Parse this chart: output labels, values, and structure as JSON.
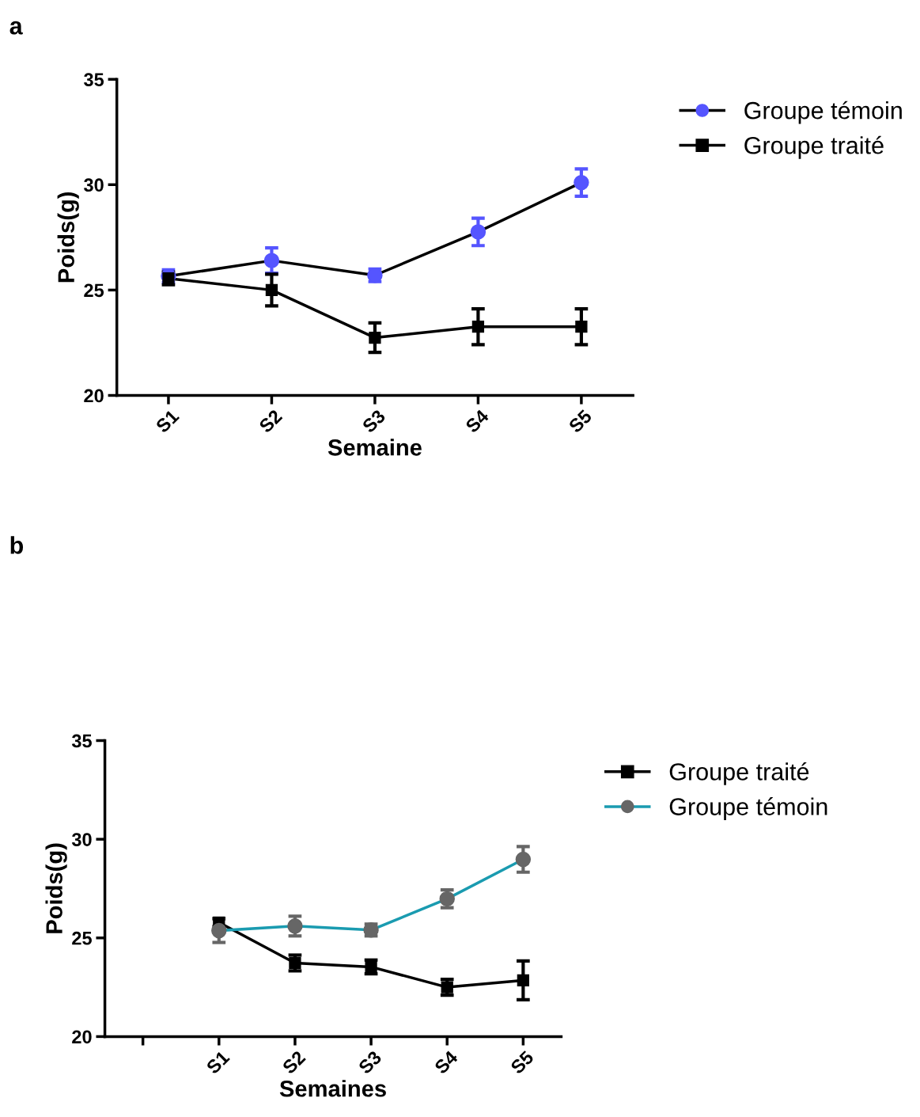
{
  "chart_data": [
    {
      "type": "line",
      "annotations": [
        "a"
      ],
      "xlabel": "Semaine",
      "ylabel": "Poids(g)",
      "categories": [
        "S1",
        "S2",
        "S3",
        "S4",
        "S5"
      ],
      "ylim": [
        20,
        35
      ],
      "yticks": [
        20,
        25,
        30,
        35
      ],
      "grid": false,
      "legend": "top right",
      "series": [
        {
          "name": "Groupe témoin",
          "color": "#000000",
          "colors": [
            "#5555ff",
            "#5555ff",
            "#5555ff",
            "#5555ff",
            "#5555ff"
          ],
          "marker": "circle",
          "values": [
            25.66,
            26.4,
            25.7,
            27.76,
            30.1
          ],
          "errors": [
            0.3,
            0.6,
            0.3,
            0.65,
            0.65
          ]
        },
        {
          "name": "Groupe traité",
          "color": "#000000",
          "colors": [
            "#000000",
            "#000000",
            "#000000",
            "#000000",
            "#000000"
          ],
          "marker": "square",
          "values": [
            25.55,
            25.0,
            22.74,
            23.26,
            23.26
          ],
          "errors": [
            0.3,
            0.75,
            0.7,
            0.85,
            0.85
          ]
        }
      ]
    },
    {
      "type": "line",
      "annotations": [
        "b"
      ],
      "xlabel": "Semaines",
      "ylabel": "Poids(g)",
      "categories": [
        null,
        "S1",
        "S2",
        "S3",
        "S4",
        "S5"
      ],
      "ylim": [
        20,
        35
      ],
      "yticks": [
        20,
        25,
        30,
        35
      ],
      "grid": false,
      "legend": "top right",
      "series": [
        {
          "name": "Groupe traité",
          "color": "#000000",
          "colors": [
            "#000000",
            "#000000",
            "#000000",
            "#000000",
            "#000000",
            "#000000"
          ],
          "marker": "square",
          "values": [
            null,
            25.78,
            23.73,
            23.53,
            22.5,
            22.85
          ],
          "errors": [
            null,
            0.2,
            0.4,
            0.35,
            0.4,
            0.98
          ]
        },
        {
          "name": "Groupe témoin",
          "color": "#1a9bb0",
          "colors": [
            "#666666",
            "#666666",
            "#666666",
            "#666666",
            "#666666",
            "#666666"
          ],
          "marker": "circle",
          "values": [
            null,
            25.37,
            25.6,
            25.4,
            26.98,
            28.98
          ],
          "errors": [
            null,
            0.6,
            0.5,
            0.3,
            0.45,
            0.65
          ]
        }
      ]
    }
  ]
}
